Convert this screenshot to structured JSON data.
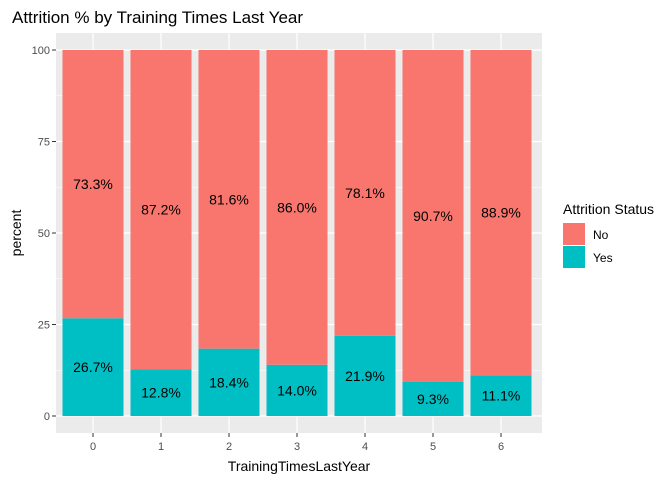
{
  "chart_data": {
    "type": "bar",
    "stacked": true,
    "title": "Attrition % by Training Times Last Year",
    "xlabel": "TrainingTimesLastYear",
    "ylabel": "percent",
    "ylim": [
      0,
      100
    ],
    "yticks": [
      "0",
      "25",
      "50",
      "75",
      "100"
    ],
    "grid": true,
    "categories": [
      "0",
      "1",
      "2",
      "3",
      "4",
      "5",
      "6"
    ],
    "series": [
      {
        "name": "No",
        "color": "#F8766D",
        "values": [
          73.3,
          87.2,
          81.6,
          86.0,
          78.1,
          90.7,
          88.9
        ],
        "labels": [
          "73.3%",
          "87.2%",
          "81.6%",
          "86.0%",
          "78.1%",
          "90.7%",
          "88.9%"
        ]
      },
      {
        "name": "Yes",
        "color": "#00BFC4",
        "values": [
          26.7,
          12.8,
          18.4,
          14.0,
          21.9,
          9.3,
          11.1
        ],
        "labels": [
          "26.7%",
          "12.8%",
          "18.4%",
          "14.0%",
          "21.9%",
          "9.3%",
          "11.1%"
        ]
      }
    ],
    "legend": {
      "title": "Attrition Status",
      "position": "right"
    },
    "colors": {
      "panel": "#EBEBEB",
      "grid": "#FFFFFF",
      "axis_text": "#4D4D4D"
    }
  }
}
